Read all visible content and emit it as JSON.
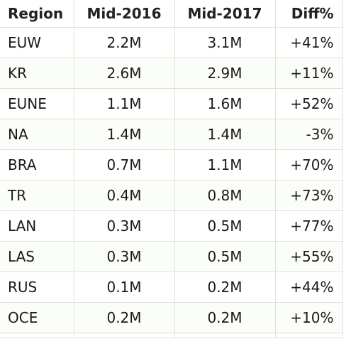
{
  "table": {
    "columns": [
      "Region",
      "Mid-2016",
      "Mid-2017",
      "Diff%"
    ],
    "rows": [
      [
        "EUW",
        "2.2M",
        "3.1M",
        "+41%"
      ],
      [
        "KR",
        "2.6M",
        "2.9M",
        "+11%"
      ],
      [
        "EUNE",
        "1.1M",
        "1.6M",
        "+52%"
      ],
      [
        "NA",
        "1.4M",
        "1.4M",
        "-3%"
      ],
      [
        "BRA",
        "0.7M",
        "1.1M",
        "+70%"
      ],
      [
        "TR",
        "0.4M",
        "0.8M",
        "+73%"
      ],
      [
        "LAN",
        "0.3M",
        "0.5M",
        "+77%"
      ],
      [
        "LAS",
        "0.3M",
        "0.5M",
        "+55%"
      ],
      [
        "RUS",
        "0.1M",
        "0.2M",
        "+44%"
      ],
      [
        "OCE",
        "0.2M",
        "0.2M",
        "+10%"
      ]
    ]
  },
  "colors": {
    "border": "#dde3d8",
    "text": "#1a1a1a",
    "background": "#ffffff"
  }
}
